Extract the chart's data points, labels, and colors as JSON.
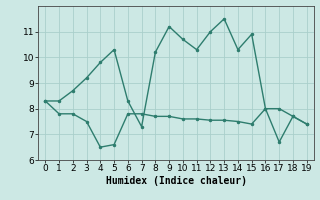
{
  "xlabel": "Humidex (Indice chaleur)",
  "line1_x": [
    0,
    1,
    2,
    3,
    4,
    5,
    6,
    7,
    8,
    9,
    10,
    11,
    12,
    13,
    14,
    15,
    16,
    17,
    18,
    19
  ],
  "line1_y": [
    8.3,
    8.3,
    8.7,
    9.2,
    9.8,
    10.3,
    8.3,
    7.3,
    10.2,
    11.2,
    10.7,
    10.3,
    11.0,
    11.5,
    10.3,
    10.9,
    8.0,
    8.0,
    7.7,
    7.4
  ],
  "line2_x": [
    0,
    1,
    2,
    3,
    4,
    5,
    6,
    7,
    8,
    9,
    10,
    11,
    12,
    13,
    14,
    15,
    16,
    17,
    18,
    19
  ],
  "line2_y": [
    8.3,
    7.8,
    7.8,
    7.5,
    6.5,
    6.6,
    7.8,
    7.8,
    7.7,
    7.7,
    7.6,
    7.6,
    7.55,
    7.55,
    7.5,
    7.4,
    8.0,
    6.7,
    7.7,
    7.4
  ],
  "line_color": "#2e7d6e",
  "bg_color": "#cce8e4",
  "grid_color": "#aacfcb",
  "ylim": [
    6,
    12
  ],
  "xlim": [
    -0.5,
    19.5
  ],
  "yticks": [
    6,
    7,
    8,
    9,
    10,
    11
  ],
  "xticks": [
    0,
    1,
    2,
    3,
    4,
    5,
    6,
    7,
    8,
    9,
    10,
    11,
    12,
    13,
    14,
    15,
    16,
    17,
    18,
    19
  ],
  "marker": ".",
  "marker_size": 3,
  "line_width": 1.0,
  "font_size": 6.5
}
